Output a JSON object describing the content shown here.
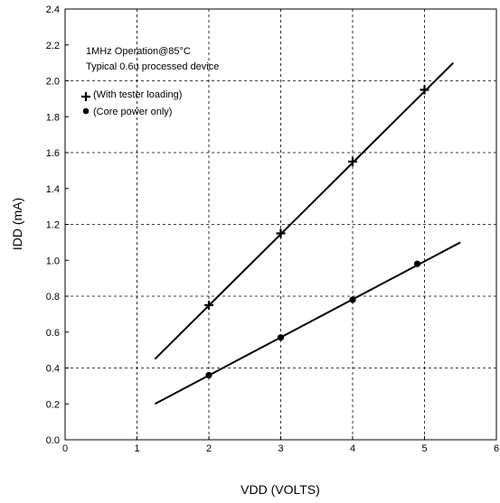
{
  "chart_data": {
    "type": "line",
    "title": "",
    "xlabel": "VDD (VOLTS)",
    "ylabel": "IDD (mA)",
    "xlim": [
      0,
      6
    ],
    "ylim": [
      0,
      2.4
    ],
    "x_ticks": [
      "0",
      "1",
      "2",
      "3",
      "4",
      "5",
      "6"
    ],
    "y_ticks": [
      "0.0",
      "0.2",
      "0.4",
      "0.6",
      "0.8",
      "1.0",
      "1.2",
      "1.4",
      "1.6",
      "1.8",
      "2.0",
      "2.2",
      "2.4"
    ],
    "grid": true,
    "annotations": [
      "1MHz Operation@85°C",
      "Typical 0.6u processed device"
    ],
    "legend": [
      {
        "marker": "plus",
        "label": "(With tester loading)"
      },
      {
        "marker": "dot",
        "label": "(Core power only)"
      }
    ],
    "series": [
      {
        "label": "(With tester loading)",
        "marker": "plus",
        "line_x": [
          1.25,
          5.4
        ],
        "line_y": [
          0.45,
          2.1
        ],
        "points_x": [
          2,
          3,
          4,
          5
        ],
        "points_y": [
          0.75,
          1.15,
          1.55,
          1.95
        ]
      },
      {
        "label": "(Core power only)",
        "marker": "dot",
        "line_x": [
          1.25,
          5.5
        ],
        "line_y": [
          0.2,
          1.1
        ],
        "points_x": [
          2,
          3,
          4,
          4.9
        ],
        "points_y": [
          0.36,
          0.57,
          0.78,
          0.98
        ]
      }
    ]
  }
}
